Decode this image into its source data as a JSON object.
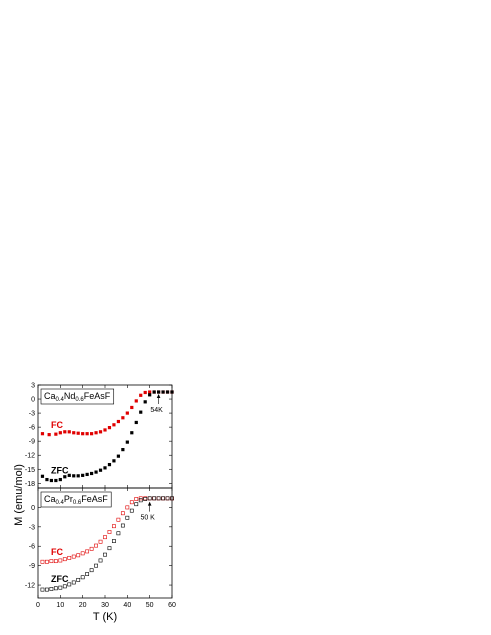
{
  "chart_data": [
    {
      "type": "scatter",
      "panel": "top",
      "xlim": [
        0,
        60
      ],
      "ylim": [
        -19,
        3
      ],
      "y_ticks": [
        3,
        0,
        -3,
        -6,
        -9,
        -12,
        -15,
        -18
      ],
      "x_ticks": [
        0,
        10,
        20,
        30,
        40,
        50,
        60
      ],
      "legend": {
        "parts": [
          {
            "text": "Ca",
            "sub": false
          },
          {
            "text": "0.4",
            "sub": true
          },
          {
            "text": "Nd",
            "sub": false
          },
          {
            "text": "0.6",
            "sub": true
          },
          {
            "text": "FeAsF",
            "sub": false
          }
        ],
        "placement": "top-left"
      },
      "annotation": {
        "text": "54K",
        "x": 54,
        "y": 1.5
      },
      "marker": "filled-square",
      "series": [
        {
          "name": "FC",
          "color": "#e00000",
          "x": [
            2,
            5,
            8,
            10,
            12,
            14,
            16,
            18,
            20,
            22,
            24,
            26,
            28,
            30,
            32,
            34,
            36,
            38,
            40,
            42,
            44,
            46,
            48,
            50,
            52,
            54,
            56,
            58,
            60
          ],
          "y": [
            -7.4,
            -7.6,
            -7.5,
            -7.2,
            -7.0,
            -7.0,
            -7.2,
            -7.3,
            -7.4,
            -7.4,
            -7.4,
            -7.2,
            -7.0,
            -6.6,
            -6.1,
            -5.5,
            -4.8,
            -4.0,
            -3.0,
            -1.8,
            -0.4,
            0.8,
            1.4,
            1.5,
            1.5,
            1.5,
            1.5,
            1.5,
            1.5
          ]
        },
        {
          "name": "ZFC",
          "color": "#000000",
          "x": [
            2,
            4,
            6,
            8,
            10,
            12,
            14,
            16,
            18,
            20,
            22,
            24,
            26,
            28,
            30,
            32,
            34,
            36,
            38,
            40,
            42,
            44,
            46,
            48,
            50,
            52,
            54,
            56,
            58,
            60
          ],
          "y": [
            -16.5,
            -17.2,
            -17.4,
            -17.4,
            -17.2,
            -16.6,
            -16.3,
            -16.4,
            -16.4,
            -16.3,
            -16.1,
            -15.9,
            -15.6,
            -15.2,
            -14.7,
            -14.0,
            -13.2,
            -12.2,
            -10.8,
            -9.2,
            -7.2,
            -5.0,
            -2.8,
            -0.6,
            0.9,
            1.5,
            1.5,
            1.5,
            1.5,
            1.5
          ]
        }
      ]
    },
    {
      "type": "scatter",
      "panel": "bottom",
      "xlim": [
        0,
        60
      ],
      "ylim": [
        -14,
        3
      ],
      "y_ticks": [
        0,
        -3,
        -6,
        -9,
        -12
      ],
      "x_ticks": [
        0,
        10,
        20,
        30,
        40,
        50,
        60
      ],
      "xlabel": "T (K)",
      "legend": {
        "parts": [
          {
            "text": "Ca",
            "sub": false
          },
          {
            "text": "0.4",
            "sub": true
          },
          {
            "text": "Pr",
            "sub": false
          },
          {
            "text": "0.6",
            "sub": true
          },
          {
            "text": "FeAsF",
            "sub": false
          }
        ],
        "placement": "top-left"
      },
      "annotation": {
        "text": "50 K",
        "x": 50,
        "y": 1.2
      },
      "marker": "open-square",
      "series": [
        {
          "name": "FC",
          "color": "#e00000",
          "x": [
            2,
            4,
            6,
            8,
            10,
            12,
            14,
            16,
            18,
            20,
            22,
            24,
            26,
            28,
            30,
            32,
            34,
            36,
            38,
            40,
            42,
            44,
            46,
            48,
            50,
            52,
            54,
            56,
            58,
            60
          ],
          "y": [
            -8.4,
            -8.4,
            -8.3,
            -8.3,
            -8.2,
            -8.0,
            -7.8,
            -7.6,
            -7.4,
            -7.1,
            -6.8,
            -6.4,
            -5.9,
            -5.3,
            -4.6,
            -3.8,
            -2.9,
            -1.9,
            -0.9,
            0.0,
            0.8,
            1.3,
            1.4,
            1.4,
            1.4,
            1.4,
            1.4,
            1.4,
            1.4,
            1.4
          ]
        },
        {
          "name": "ZFC",
          "color": "#000000",
          "x": [
            2,
            4,
            6,
            8,
            10,
            12,
            14,
            16,
            18,
            20,
            22,
            24,
            26,
            28,
            30,
            32,
            34,
            36,
            38,
            40,
            42,
            44,
            46,
            48,
            50,
            52,
            54,
            56,
            58,
            60
          ],
          "y": [
            -12.7,
            -12.7,
            -12.6,
            -12.5,
            -12.4,
            -12.2,
            -11.9,
            -11.6,
            -11.2,
            -10.8,
            -10.3,
            -9.7,
            -9.0,
            -8.2,
            -7.3,
            -6.3,
            -5.2,
            -4.0,
            -2.8,
            -1.6,
            -0.5,
            0.5,
            1.1,
            1.3,
            1.4,
            1.4,
            1.4,
            1.4,
            1.4,
            1.4
          ]
        }
      ]
    }
  ],
  "shared_ylabel": "M (emu/mol)"
}
